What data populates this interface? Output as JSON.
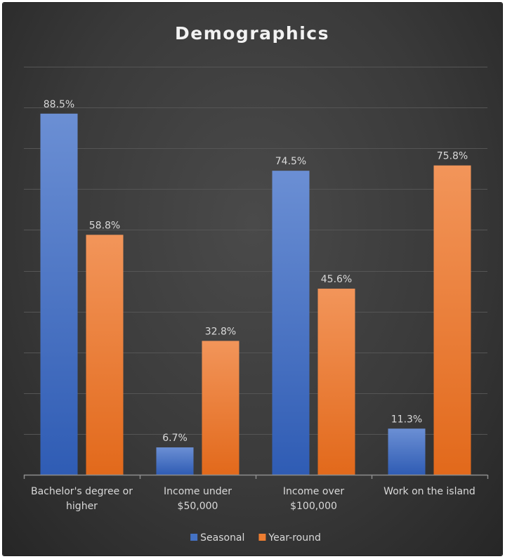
{
  "chart_data": {
    "type": "bar",
    "title": "Demographics",
    "categories": [
      [
        "Bachelor's degree or",
        "higher"
      ],
      [
        "Income under",
        "$50,000"
      ],
      [
        "Income over",
        "$100,000"
      ],
      [
        "Work on the island"
      ]
    ],
    "series": [
      {
        "name": "Seasonal",
        "values": [
          88.5,
          6.7,
          74.5,
          11.3
        ],
        "labels": [
          "88.5%",
          "6.7%",
          "74.5%",
          "11.3%"
        ],
        "color": "#4472c4"
      },
      {
        "name": "Year-round",
        "values": [
          58.8,
          32.8,
          45.6,
          75.8
        ],
        "labels": [
          "58.8%",
          "32.8%",
          "45.6%",
          "75.8%"
        ],
        "color": "#ed7d31"
      }
    ],
    "ylim": [
      0,
      100
    ],
    "y_major_unit": 10,
    "grid": true,
    "legend_position": "bottom",
    "value_axis_visible": false
  }
}
